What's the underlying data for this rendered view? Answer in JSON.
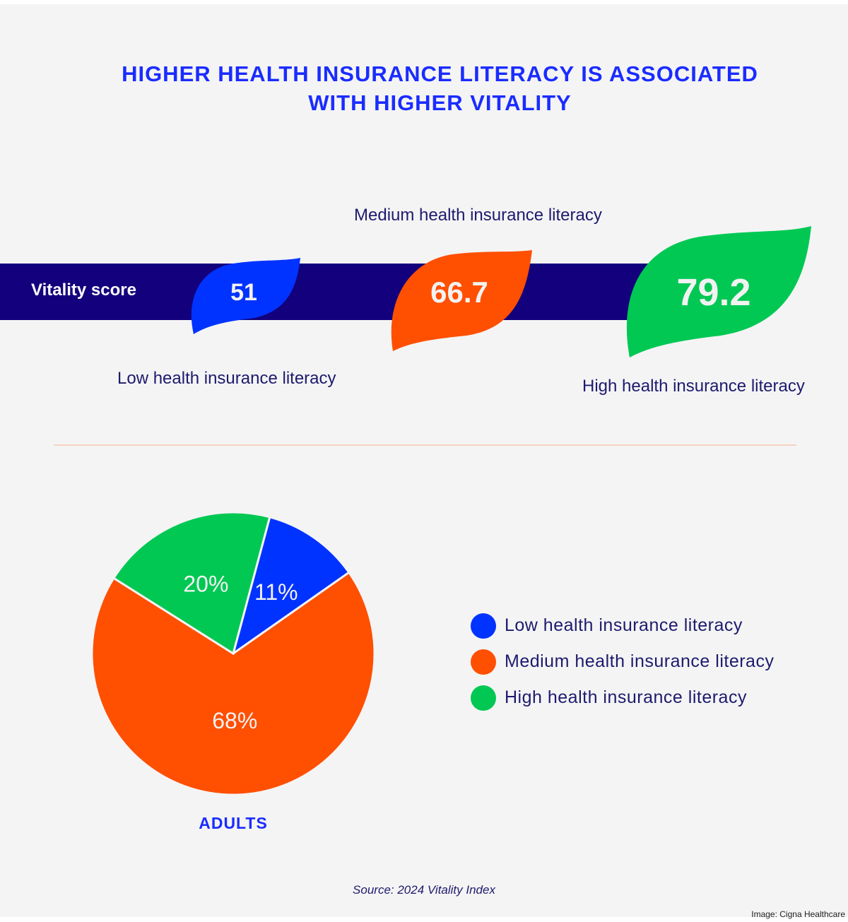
{
  "title_line1": "HIGHER HEALTH INSURANCE LITERACY IS ASSOCIATED",
  "title_line2": "WITH HIGHER VITALITY",
  "vitality": {
    "label": "Vitality score",
    "items": [
      {
        "category": "Low health insurance literacy",
        "score": "51",
        "color": "#0033ff"
      },
      {
        "category": "Medium health insurance literacy",
        "score": "66.7",
        "color": "#ff4f00"
      },
      {
        "category": "High health insurance literacy",
        "score": "79.2",
        "color": "#00c853"
      }
    ]
  },
  "chart_data": {
    "type": "pie",
    "title": "ADULTS",
    "categories": [
      "Low health insurance literacy",
      "Medium health insurance literacy",
      "High health insurance literacy"
    ],
    "values": [
      11,
      68,
      20
    ],
    "data_labels": [
      "11%",
      "68%",
      "20%"
    ],
    "colors": [
      "#0033ff",
      "#ff4f00",
      "#00c853"
    ],
    "legend_position": "right"
  },
  "source": "Source: 2024 Vitality Index",
  "credit": "Image: Cigna Healthcare"
}
